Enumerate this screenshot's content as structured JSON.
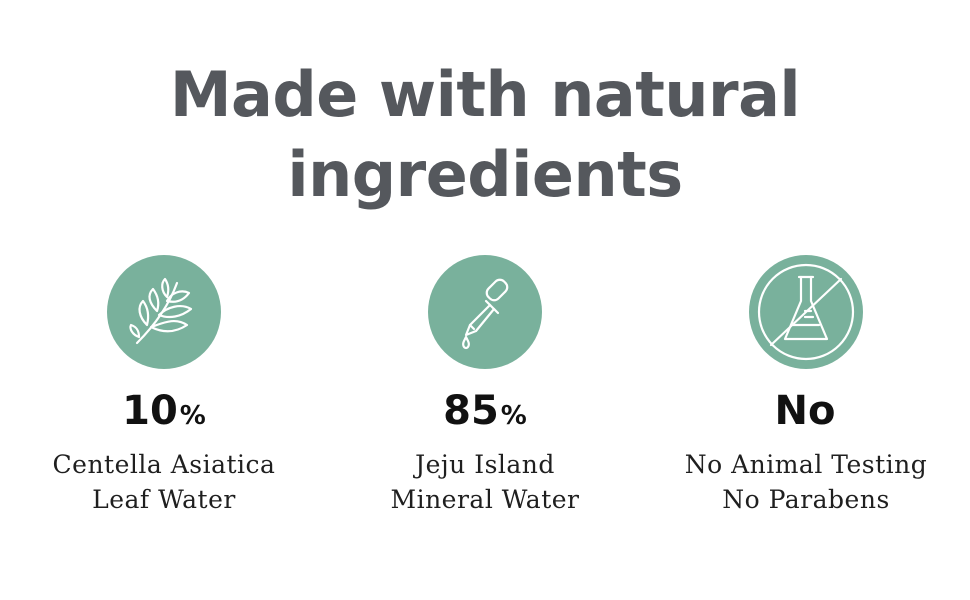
{
  "headline": {
    "line1": "Made with natural",
    "line2": "ingredients"
  },
  "features": [
    {
      "icon": "leaf-icon",
      "value": "10",
      "unit": "%",
      "lines": [
        "Centella Asiatica",
        "Leaf Water"
      ]
    },
    {
      "icon": "dropper-icon",
      "value": "85",
      "unit": "%",
      "lines": [
        "Jeju Island",
        "Mineral Water"
      ]
    },
    {
      "icon": "no-testing-flask-icon",
      "value": "No",
      "unit": "",
      "lines": [
        "No Animal Testing",
        "No Parabens"
      ]
    }
  ],
  "colors": {
    "icon_circle": "#79b19c",
    "headline_text": "#55585d",
    "body_text": "#1f1f1f"
  }
}
